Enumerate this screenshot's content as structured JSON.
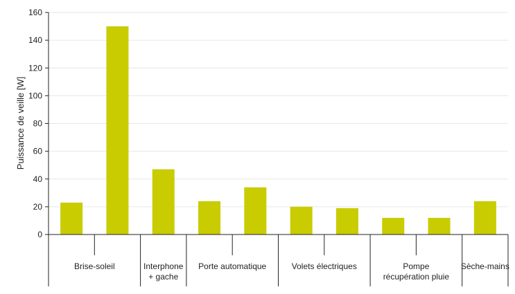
{
  "chart_data": {
    "type": "bar",
    "title": "",
    "xlabel": "",
    "ylabel": "Puissance de veille [W]",
    "ylim": [
      0,
      160
    ],
    "yticks": [
      0,
      20,
      40,
      60,
      80,
      100,
      120,
      140,
      160
    ],
    "grid": true,
    "bar_color": "#c8cc00",
    "groups": [
      {
        "label": [
          "Brise-soleil"
        ],
        "values": [
          23,
          150
        ]
      },
      {
        "label": [
          "Interphone",
          "+ gache"
        ],
        "values": [
          47
        ]
      },
      {
        "label": [
          "Porte automatique"
        ],
        "values": [
          24,
          34
        ]
      },
      {
        "label": [
          "Volets électriques"
        ],
        "values": [
          20,
          19
        ]
      },
      {
        "label": [
          "Pompe",
          "récupération pluie"
        ],
        "values": [
          12,
          12
        ]
      },
      {
        "label": [
          "Sèche-mains"
        ],
        "values": [
          24
        ]
      }
    ]
  }
}
